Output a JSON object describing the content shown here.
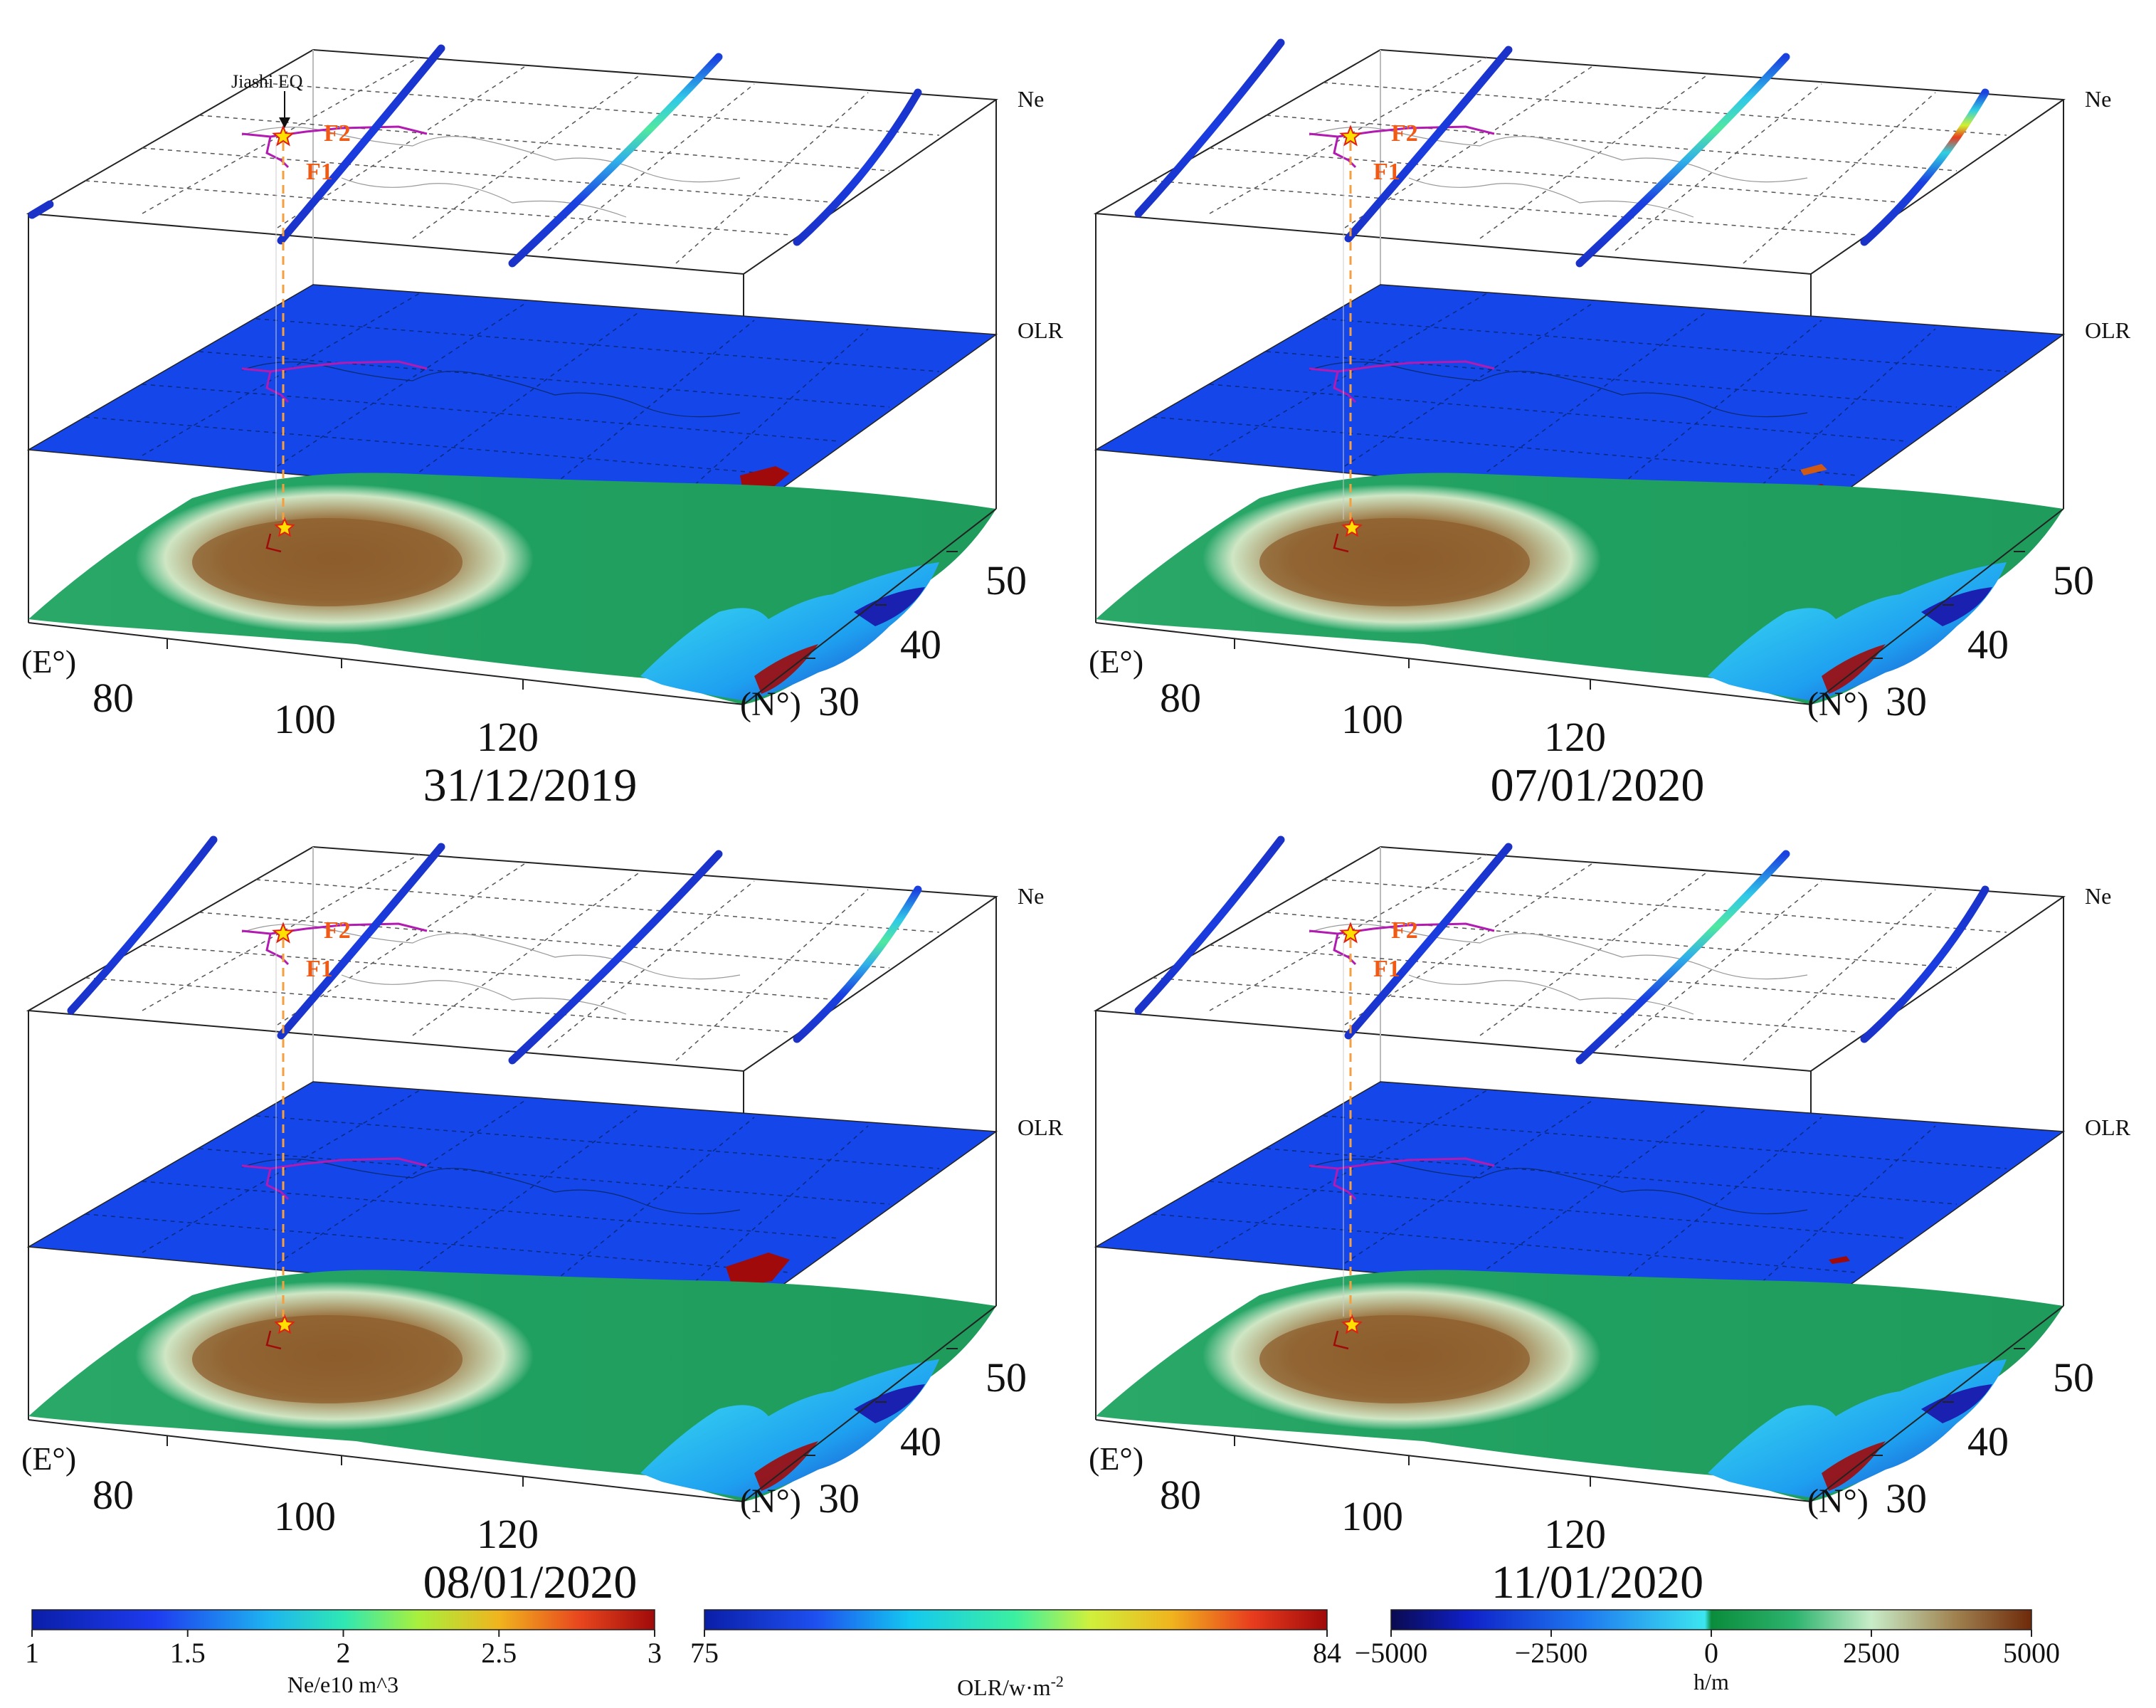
{
  "figure": {
    "layer_labels": {
      "ne": "Ne",
      "olr": "OLR"
    },
    "axes": {
      "lon_unit": "(E°)",
      "lat_unit": "(N°)",
      "lon_ticks": [
        "80",
        "100",
        "120"
      ],
      "lat_ticks": [
        "30",
        "40",
        "50"
      ]
    },
    "annotations": {
      "epicenter_label": "Jiashi EQ",
      "fault_1": "F1",
      "fault_2": "F2"
    },
    "panels": [
      {
        "date": "31/12/2019"
      },
      {
        "date": "07/01/2020"
      },
      {
        "date": "08/01/2020"
      },
      {
        "date": "11/01/2020"
      }
    ]
  },
  "colorbars": {
    "ne": {
      "label": "Ne/e10 m^3",
      "ticks": [
        "1",
        "1.5",
        "2",
        "2.5",
        "3"
      ]
    },
    "olr": {
      "label": "OLR/w·m",
      "label_superscript": "-2",
      "ticks": [
        "75",
        "84"
      ]
    },
    "height": {
      "label": "h/m",
      "ticks": [
        "−5000",
        "−2500",
        "0",
        "2500",
        "5000"
      ]
    }
  },
  "colors": {
    "olr_plane": "#1446ea",
    "fault": "#b21ab2",
    "label_orange": "#f05a14",
    "dashed_line": "#f5a040",
    "star_fill": "#ffe000",
    "star_stroke": "#e02010"
  }
}
